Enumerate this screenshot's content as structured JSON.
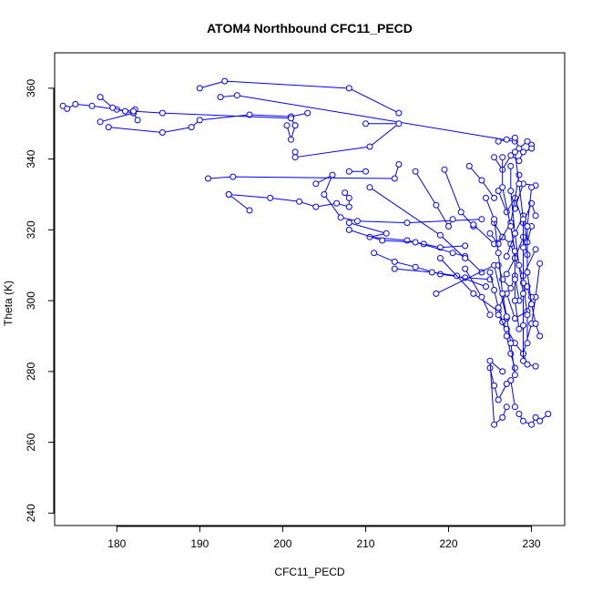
{
  "chart_data": {
    "type": "scatter",
    "title": "ATOM4 Northbound CFC11_PECD",
    "xlabel": "CFC11_PECD",
    "ylabel": "Theta (K)",
    "xlim": [
      172.5,
      234
    ],
    "ylim": [
      236.5,
      370
    ],
    "x_ticks": [
      180,
      190,
      200,
      210,
      220,
      230
    ],
    "y_ticks": [
      240,
      260,
      280,
      300,
      320,
      340,
      360
    ],
    "grid": false,
    "legend": "none",
    "style": "points-connected-by-lines",
    "color": "#0000ff",
    "series": [
      {
        "segments": [
          [
            [
              173.5,
              355
            ],
            [
              174,
              354.2
            ],
            [
              175,
              355.5
            ],
            [
              177,
              355
            ],
            [
              180,
              354
            ],
            [
              182,
              353
            ]
          ],
          [
            [
              178,
              357.5
            ],
            [
              179.5,
              354.5
            ],
            [
              181,
              353.5
            ],
            [
              182.2,
              354
            ]
          ],
          [
            [
              178,
              350.5
            ],
            [
              182,
              353
            ],
            [
              182.5,
              351
            ]
          ],
          [
            [
              179,
              349
            ],
            [
              185.5,
              347.5
            ],
            [
              189,
              349
            ],
            [
              190,
              351
            ],
            [
              196,
              352.5
            ],
            [
              201,
              352
            ],
            [
              203,
              353
            ]
          ],
          [
            [
              182,
              353.5
            ],
            [
              185.5,
              353
            ],
            [
              201,
              351.5
            ],
            [
              201.5,
              349.5
            ]
          ],
          [
            [
              190,
              360
            ],
            [
              193,
              362
            ],
            [
              208,
              360
            ],
            [
              214,
              353
            ]
          ],
          [
            [
              192.5,
              357.5
            ],
            [
              194.5,
              358
            ],
            [
              228,
              345
            ]
          ],
          [
            [
              200.5,
              349.5
            ],
            [
              201,
              345.5
            ],
            [
              201.5,
              349.5
            ]
          ],
          [
            [
              201.5,
              342
            ],
            [
              201.5,
              340.5
            ],
            [
              210.5,
              343.5
            ],
            [
              214,
              350
            ],
            [
              210,
              350
            ]
          ],
          [
            [
              208,
              336.5
            ],
            [
              210,
              336.5
            ]
          ],
          [
            [
              191,
              334.5
            ],
            [
              194,
              335
            ],
            [
              213.5,
              334.5
            ],
            [
              214,
              338.5
            ]
          ],
          [
            [
              193.5,
              330
            ],
            [
              198.5,
              329
            ],
            [
              202,
              328
            ],
            [
              204,
              326.5
            ],
            [
              206.5,
              327.5
            ],
            [
              208,
              326.5
            ],
            [
              208,
              329
            ],
            [
              207.5,
              330.5
            ]
          ],
          [
            [
              196,
              325.5
            ],
            [
              193.5,
              330
            ]
          ],
          [
            [
              204,
              333
            ],
            [
              206,
              335.5
            ],
            [
              205,
              330
            ],
            [
              207,
              323.5
            ],
            [
              209,
              322.5
            ],
            [
              215,
              322
            ],
            [
              224,
              323
            ]
          ],
          [
            [
              208,
              322
            ],
            [
              212.5,
              319
            ],
            [
              210.5,
              318
            ],
            [
              215,
              317
            ],
            [
              217,
              316
            ],
            [
              219,
              315
            ],
            [
              222,
              315.5
            ]
          ],
          [
            [
              208,
              320
            ],
            [
              212,
              317
            ],
            [
              216,
              316.5
            ],
            [
              220.5,
              313.5
            ],
            [
              222,
              312.5
            ],
            [
              224,
              308
            ]
          ],
          [
            [
              211,
              313.5
            ],
            [
              213.5,
              311
            ],
            [
              216,
              309.5
            ],
            [
              219,
              307.5
            ],
            [
              222,
              306.5
            ],
            [
              225,
              306
            ]
          ],
          [
            [
              213.5,
              309
            ],
            [
              218,
              308
            ],
            [
              221,
              307
            ],
            [
              224.5,
              304
            ]
          ],
          [
            [
              216,
              336.5
            ],
            [
              218.5,
              327
            ],
            [
              220,
              321
            ],
            [
              220.5,
              323
            ]
          ],
          [
            [
              219,
              312
            ],
            [
              223,
              302
            ],
            [
              226,
              297
            ]
          ],
          [
            [
              222,
              309
            ],
            [
              224,
              301
            ],
            [
              225,
              296
            ]
          ],
          [
            [
              218.5,
              302
            ],
            [
              225.5,
              310
            ],
            [
              227,
              295
            ]
          ],
          [
            [
              219.5,
              337
            ],
            [
              221.5,
              325
            ],
            [
              223,
              321
            ]
          ],
          [
            [
              222.5,
              338
            ],
            [
              224,
              334
            ],
            [
              225.5,
              329
            ]
          ],
          [
            [
              223,
              321.5
            ],
            [
              225.5,
              316
            ],
            [
              226.5,
              318
            ]
          ],
          [
            [
              210.5,
              332
            ],
            [
              219,
              318.5
            ],
            [
              222,
              312
            ]
          ],
          [
            [
              226,
              345
            ],
            [
              227,
              345.5
            ],
            [
              228,
              346
            ],
            [
              228.5,
              343
            ],
            [
              229.5,
              345
            ],
            [
              230,
              344
            ]
          ],
          [
            [
              225.5,
              340.5
            ],
            [
              226.5,
              337
            ],
            [
              227.5,
              341
            ],
            [
              228.5,
              339.5
            ],
            [
              229,
              342
            ],
            [
              230,
              343
            ]
          ],
          [
            [
              226,
              331
            ],
            [
              227,
              325
            ],
            [
              228,
              329
            ],
            [
              229,
              322
            ],
            [
              230,
              327.5
            ],
            [
              230.5,
              324
            ]
          ],
          [
            [
              225.5,
              322
            ],
            [
              226.5,
              318
            ],
            [
              227.5,
              316
            ],
            [
              228,
              312
            ],
            [
              229,
              318
            ],
            [
              229.5,
              313
            ]
          ],
          [
            [
              226,
              310
            ],
            [
              226.5,
              306
            ],
            [
              227.5,
              303.5
            ],
            [
              228,
              307
            ],
            [
              228.5,
              300
            ],
            [
              229.5,
              304
            ],
            [
              230,
              299
            ]
          ],
          [
            [
              225,
              308
            ],
            [
              225.5,
              303
            ],
            [
              226,
              298
            ],
            [
              226.5,
              294
            ],
            [
              227,
              290
            ],
            [
              227.5,
              285
            ],
            [
              228,
              281
            ]
          ],
          [
            [
              226,
              296
            ],
            [
              227,
              292
            ],
            [
              228,
              288
            ],
            [
              229,
              285
            ],
            [
              229.5,
              282
            ],
            [
              230.5,
              281.5
            ]
          ],
          [
            [
              225,
              281
            ],
            [
              225.5,
              276
            ],
            [
              226,
              272
            ],
            [
              227,
              276.5
            ],
            [
              227.5,
              277.5
            ],
            [
              228,
              270
            ]
          ],
          [
            [
              226.5,
              280
            ],
            [
              225,
              283
            ],
            [
              225.5,
              265
            ],
            [
              226.5,
              267
            ],
            [
              227,
              270
            ]
          ],
          [
            [
              228.5,
              268
            ],
            [
              229,
              266
            ],
            [
              230,
              265
            ],
            [
              230.5,
              267
            ],
            [
              231,
              266
            ],
            [
              232,
              268
            ]
          ],
          [
            [
              229,
              285
            ],
            [
              230,
              293.5
            ],
            [
              230.5,
              301
            ],
            [
              231,
              310.5
            ]
          ],
          [
            [
              228,
              326
            ],
            [
              229,
              333
            ],
            [
              230.5,
              332.5
            ]
          ],
          [
            [
              227,
              312.5
            ],
            [
              228,
              319
            ],
            [
              229,
              324
            ],
            [
              229.5,
              316.5
            ],
            [
              230,
              321
            ]
          ],
          [
            [
              226,
              298
            ],
            [
              227,
              302
            ],
            [
              228,
              295
            ],
            [
              229.5,
              297
            ],
            [
              230,
              301
            ]
          ],
          [
            [
              227,
              307.5
            ],
            [
              228,
              312
            ],
            [
              229,
              307
            ],
            [
              230.5,
              314.5
            ]
          ],
          [
            [
              225,
              319
            ],
            [
              226,
              316
            ],
            [
              227.5,
              322
            ],
            [
              228.5,
              335.5
            ]
          ],
          [
            [
              226.5,
              340.5
            ],
            [
              226.5,
              332
            ],
            [
              227.5,
              321
            ],
            [
              228,
              314
            ],
            [
              228,
              306
            ],
            [
              228,
              300
            ],
            [
              228.5,
              292
            ]
          ],
          [
            [
              228,
              342
            ],
            [
              228.5,
              333
            ],
            [
              229,
              323
            ],
            [
              229,
              315
            ],
            [
              229,
              305
            ],
            [
              229.5,
              296
            ],
            [
              229.5,
              288
            ]
          ],
          [
            [
              227.5,
              338
            ],
            [
              227.5,
              331
            ],
            [
              228,
              319
            ],
            [
              228.5,
              310
            ],
            [
              229,
              302
            ],
            [
              229,
              293
            ],
            [
              229,
              283
            ]
          ],
          [
            [
              230,
              332
            ],
            [
              229.5,
              321
            ],
            [
              229.5,
              308
            ],
            [
              230,
              299
            ],
            [
              230.5,
              293.5
            ],
            [
              231,
              290
            ]
          ],
          [
            [
              224.5,
              329
            ],
            [
              225.5,
              323
            ],
            [
              226,
              313.5
            ],
            [
              226.5,
              302
            ],
            [
              227,
              295.5
            ],
            [
              227.5,
              288
            ],
            [
              228,
              279
            ]
          ]
        ]
      }
    ]
  }
}
